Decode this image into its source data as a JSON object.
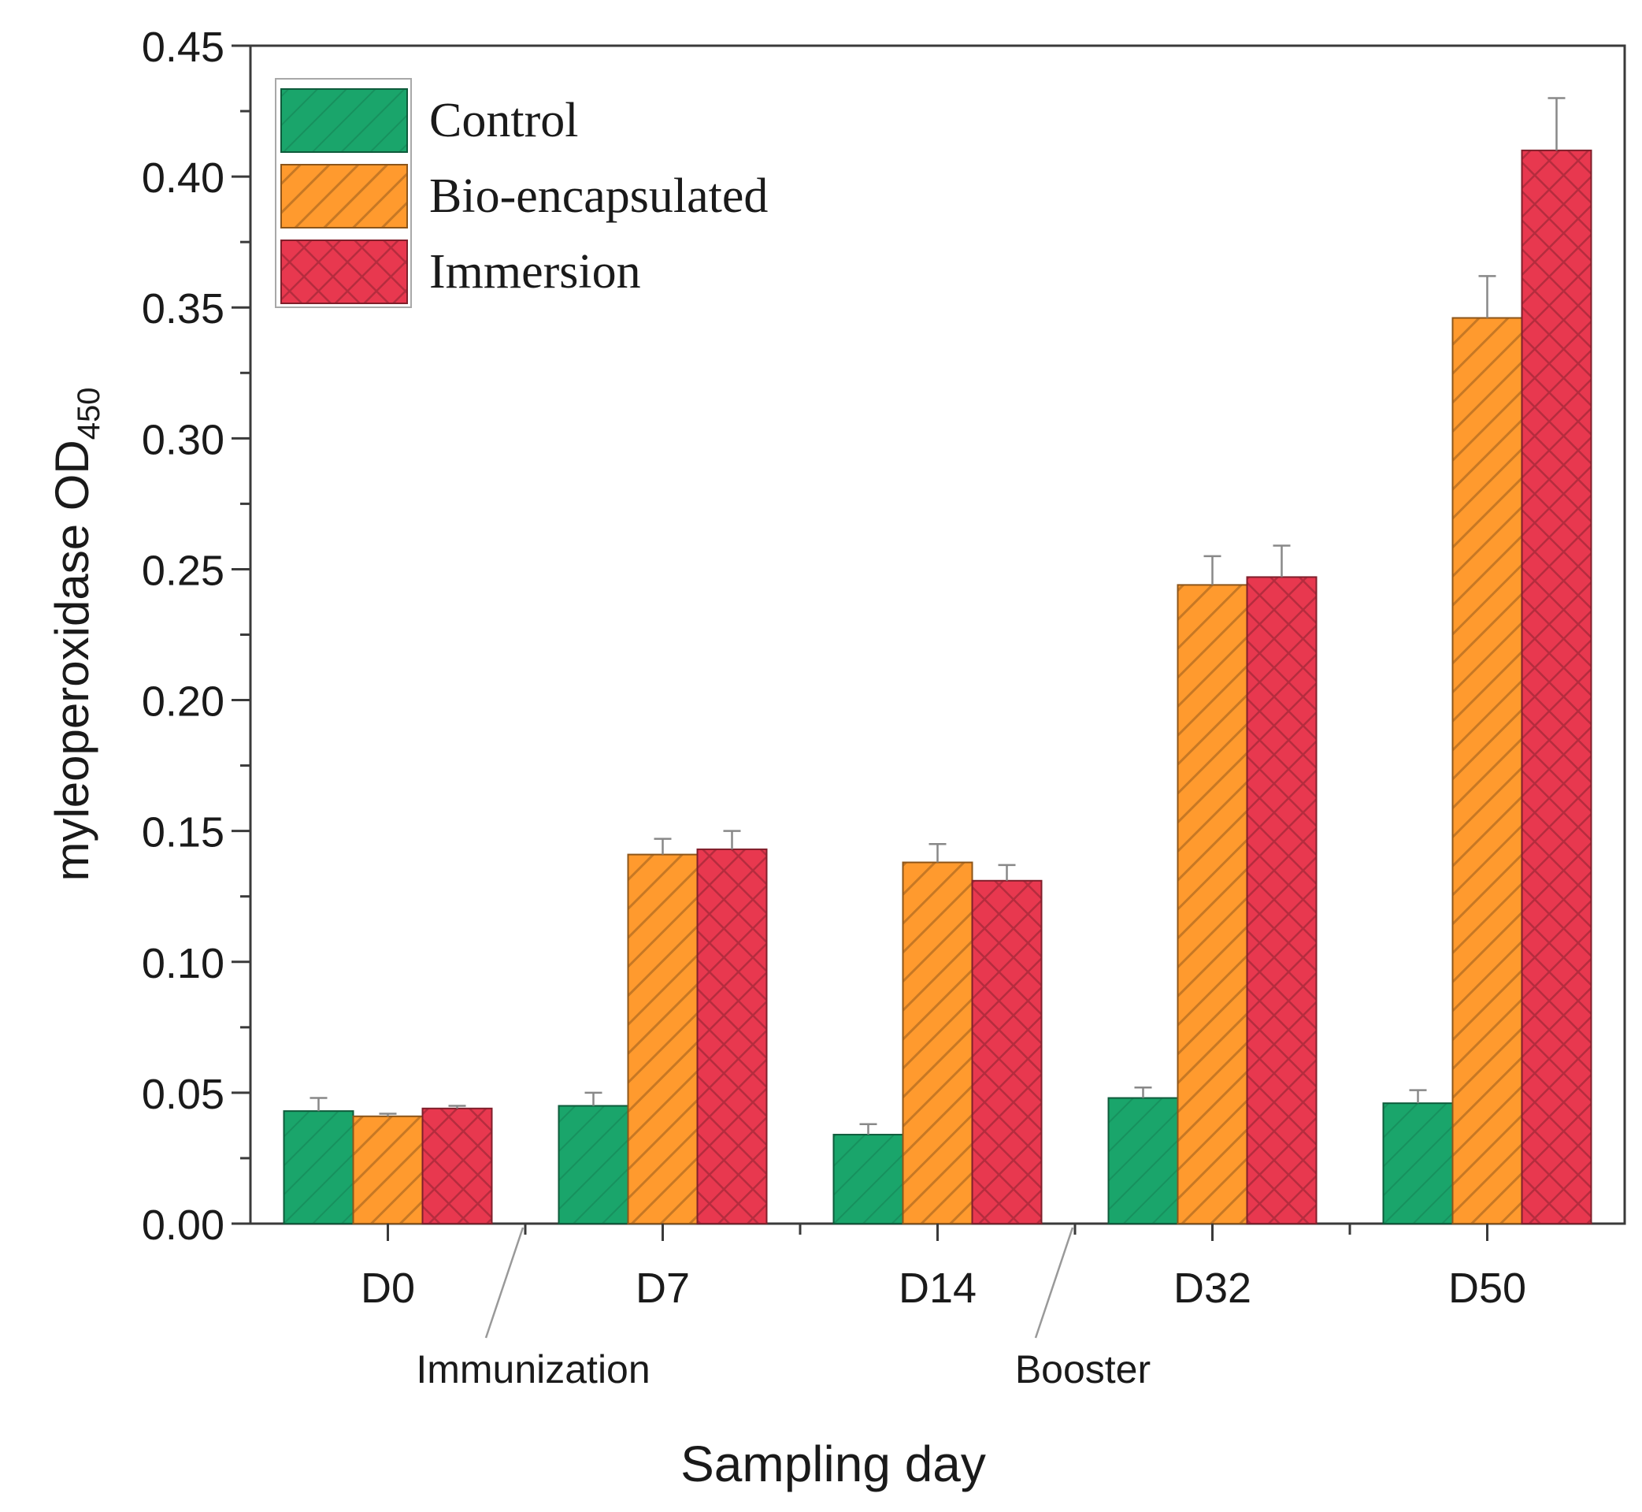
{
  "chart_data": {
    "type": "bar",
    "title": "",
    "xlabel": "Sampling day",
    "ylabel": "myleoperoxidase OD",
    "ylabel_subscript": "450",
    "ylim": [
      0,
      0.45
    ],
    "yticks": [
      "0.00",
      "0.05",
      "0.10",
      "0.15",
      "0.20",
      "0.25",
      "0.30",
      "0.35",
      "0.40",
      "0.45"
    ],
    "categories": [
      "D0",
      "D7",
      "D14",
      "D32",
      "D50"
    ],
    "series": [
      {
        "name": "Control",
        "color": "#1aa56b",
        "pattern": "diagonal-light",
        "values": [
          0.043,
          0.045,
          0.034,
          0.048,
          0.046
        ],
        "errors": [
          0.005,
          0.005,
          0.004,
          0.004,
          0.005
        ]
      },
      {
        "name": "Bio-encapsulated",
        "color": "#ff9a2e",
        "pattern": "diagonal",
        "values": [
          0.041,
          0.141,
          0.138,
          0.244,
          0.346
        ],
        "errors": [
          0.001,
          0.006,
          0.007,
          0.011,
          0.016
        ]
      },
      {
        "name": "Immersion",
        "color": "#e8384f",
        "pattern": "crosshatch",
        "values": [
          0.044,
          0.143,
          0.131,
          0.247,
          0.41
        ],
        "errors": [
          0.001,
          0.007,
          0.006,
          0.012,
          0.02
        ]
      }
    ],
    "annotations": [
      {
        "text": "Immunization",
        "between": [
          "D0",
          "D7"
        ]
      },
      {
        "text": "Booster",
        "between": [
          "D14",
          "D32"
        ]
      }
    ],
    "legend_position": "top-left",
    "grid": false
  }
}
